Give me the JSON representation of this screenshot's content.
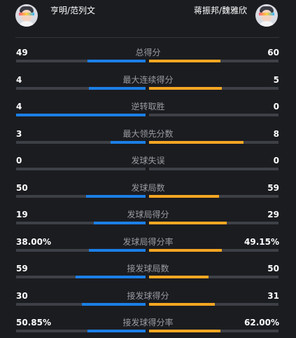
{
  "teams": {
    "left": {
      "name": "亨明/范列文",
      "avatar": "player-avatar",
      "color": "#1b7fe6"
    },
    "right": {
      "name": "蒋振邦/魏雅欣",
      "avatar": "player-avatar",
      "color": "#f5a623"
    }
  },
  "stats": [
    {
      "label": "总得分",
      "left": "49",
      "right": "60",
      "left_share": 0.45,
      "right_share": 0.55
    },
    {
      "label": "最大连续得分",
      "left": "4",
      "right": "5",
      "left_share": 0.44,
      "right_share": 0.56
    },
    {
      "label": "逆转取胜",
      "left": "4",
      "right": "0",
      "left_share": 1.0,
      "right_share": 0.0
    },
    {
      "label": "最大领先分数",
      "left": "3",
      "right": "8",
      "left_share": 0.27,
      "right_share": 0.73
    },
    {
      "label": "发球失误",
      "left": "0",
      "right": "0",
      "left_share": 0.0,
      "right_share": 0.0
    },
    {
      "label": "发球局数",
      "left": "50",
      "right": "59",
      "left_share": 0.46,
      "right_share": 0.54
    },
    {
      "label": "发球局得分",
      "left": "19",
      "right": "29",
      "left_share": 0.4,
      "right_share": 0.6
    },
    {
      "label": "发球局得分率",
      "left": "38.00%",
      "right": "49.15%",
      "left_share": 0.44,
      "right_share": 0.56
    },
    {
      "label": "接发球局数",
      "left": "59",
      "right": "50",
      "left_share": 0.54,
      "right_share": 0.46
    },
    {
      "label": "接发球得分",
      "left": "30",
      "right": "31",
      "left_share": 0.49,
      "right_share": 0.51
    },
    {
      "label": "接发球得分率",
      "left": "50.85%",
      "right": "62.00%",
      "left_share": 0.45,
      "right_share": 0.55
    }
  ]
}
